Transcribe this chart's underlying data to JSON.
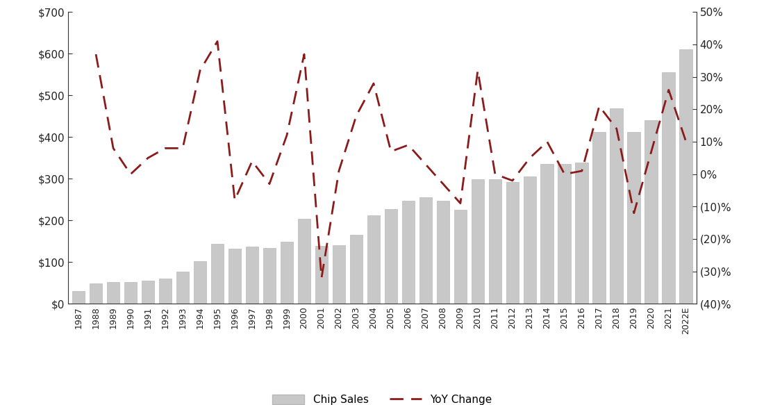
{
  "years": [
    "1987",
    "1988",
    "1989",
    "1990",
    "1991",
    "1992",
    "1993",
    "1994",
    "1995",
    "1996",
    "1997",
    "1998",
    "1999",
    "2000",
    "2001",
    "2002",
    "2003",
    "2004",
    "2005",
    "2006",
    "2007",
    "2008",
    "2009",
    "2010",
    "2011",
    "2012",
    "2013",
    "2014",
    "2015",
    "2016",
    "2017",
    "2018",
    "2019",
    "2020",
    "2021",
    "2022E"
  ],
  "chip_sales": [
    30,
    48,
    52,
    52,
    55,
    60,
    77,
    102,
    144,
    132,
    137,
    133,
    149,
    204,
    139,
    140,
    166,
    213,
    228,
    248,
    256,
    248,
    226,
    299,
    299,
    292,
    306,
    336,
    335,
    339,
    412,
    469,
    412,
    440,
    555,
    610
  ],
  "yoy_change": [
    null,
    37,
    8,
    0,
    5,
    8,
    8,
    32,
    41,
    -8,
    4,
    -3,
    12,
    37,
    -32,
    1,
    18,
    28,
    7,
    9,
    3,
    -3,
    -9,
    32,
    0,
    -2,
    5,
    10,
    0,
    1,
    21,
    14,
    -12,
    7,
    26,
    10
  ],
  "bar_color": "#c8c8c8",
  "bar_edge_color": "#b8b8b8",
  "line_color": "#8b1a1a",
  "background_color": "#ffffff",
  "left_ylim": [
    0,
    700
  ],
  "right_ylim": [
    -40,
    50
  ],
  "left_yticks": [
    0,
    100,
    200,
    300,
    400,
    500,
    600,
    700
  ],
  "left_yticklabels": [
    "$0",
    "$100",
    "$200",
    "$300",
    "$400",
    "$500",
    "$600",
    "$700"
  ],
  "right_yticks": [
    -40,
    -30,
    -20,
    -10,
    0,
    10,
    20,
    30,
    40,
    50
  ],
  "right_yticklabels": [
    "(40)%",
    "(30)%",
    "(20)%",
    "(10)%",
    "0%",
    "10%",
    "20%",
    "30%",
    "40%",
    "50%"
  ],
  "legend_chip_label": "Chip Sales",
  "legend_yoy_label": "YoY Change"
}
